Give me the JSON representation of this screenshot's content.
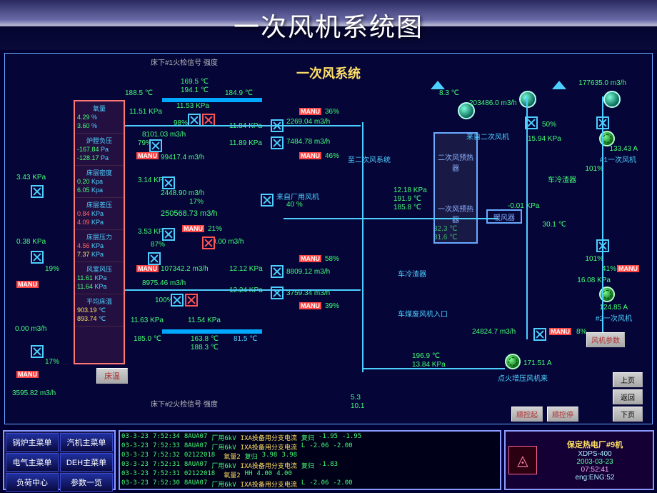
{
  "titlebar": {
    "title": "一次风机系统图"
  },
  "canvas": {
    "subtitle": "一次风系统",
    "top_text": "床下#1火检信号  强度",
    "bottom_text": "床下#2火检信号  强度",
    "bottom_values": {
      "a": "5.3",
      "b": "10.1"
    },
    "bed_temp_btn": "床温",
    "fan_param_btn": "风机参数",
    "ctrl": {
      "seqstart": "顺控起",
      "seqstop": "顺控停"
    },
    "nav": {
      "up": "上页",
      "back": "返回",
      "down": "下页"
    },
    "boiler": {
      "sections": [
        {
          "title": "氧量",
          "v1": "4.29",
          "u1": "%",
          "v2": "3.60",
          "u2": "%"
        },
        {
          "title": "炉膛负压",
          "v1": "-167.84",
          "u1": "Pa",
          "v2": "-128.17",
          "u2": "Pa"
        },
        {
          "title": "床层密度",
          "v1": "0.20",
          "u1": "Kpa",
          "v2": "6.05",
          "u2": "Kpa"
        },
        {
          "title": "床层差压",
          "v1": "0.84",
          "u1": "KPa",
          "v2": "4.09",
          "u2": "KPa"
        },
        {
          "title": "床层压力",
          "v1": "4.56",
          "u1": "KPa",
          "v2": "7.37",
          "u2": "KPa"
        },
        {
          "title": "风室风压",
          "v1": "11.61",
          "u1": "KPa",
          "v2": "11.64",
          "u2": "KPa"
        },
        {
          "title": "平均床温",
          "v1": "903.19",
          "u1": "℃",
          "v2": "893.74",
          "u2": "℃"
        }
      ]
    },
    "values": {
      "t1": "169.5",
      "t2": "194.1",
      "t_left": "188.5",
      "t_right_a": "184.9",
      "kpa_a": "11.51",
      "kpa_b": "11.53",
      "flow1": "8101.03",
      "flow1_pct": "79",
      "pct_98": "98",
      "kpa_c": "11.84",
      "flow_c": "2269.04",
      "pct_36": "36",
      "flow2": "99417.4",
      "kpa_d": "11.89",
      "flow_d": "7484.78",
      "pct_46": "46",
      "kpa_e": "3.14",
      "flow3": "2448.90",
      "pct_17": "17",
      "total_flow": "250568.73",
      "kpa_f": "3.53",
      "pct_87": "87",
      "pct_21": "21",
      "flow_f": "0.00",
      "flow4": "107342.2",
      "kpa_g": "12.12",
      "pct_58": "58",
      "flow_g": "8809.12",
      "flow5": "8975.46",
      "kpa_h": "12.24",
      "flow_h": "3759.34",
      "pct_100": "100",
      "kpa_i": "11.63",
      "kpa_j": "11.54",
      "pct_39": "39",
      "t_low_a": "185.0",
      "t_low_b": "163.8",
      "t_low_c": "188.3",
      "t_low_d": "81.5",
      "left1_kpa": "3.43",
      "left2_kpa": "0.38",
      "left_pct": "19",
      "left_flow": "0.00",
      "left_pct2": "17",
      "left_flow2": "3595.82",
      "preheater_top": "二次风预热器",
      "preheater_bot": "一次风预热器",
      "air_label": "暖风器",
      "source1": "来自二次风机",
      "dest1": "至二次风系统",
      "source2": "来自厂用风机",
      "dest2": "车冷渣器",
      "c2_kpa": "12.18",
      "c2_t1": "191.9",
      "c2_t2": "185.8",
      "c2_t3": "32.3",
      "c2_t4": "30.1",
      "c2_t5": "31.6",
      "c2_kpa2": "-0.01",
      "c2_t_in": "8.3",
      "r_flow1": "203486.0",
      "r_flow2": "177635.0",
      "r_pct50": "50",
      "r_kpa3": "15.94",
      "r_a1": "133.43",
      "r_lab1": "#1一次风机",
      "r_pct101a": "101",
      "r_pct101b": "101",
      "r_kpa4": "16.08",
      "r_a2": "124.85",
      "r_lab2": "#2一次风机",
      "r_pct41": "41",
      "r_flow3": "24824.7",
      "r_pct8": "8",
      "r_a3": "171.51",
      "r_lab3": "点火增压风机来",
      "r_dest3": "车煤废风机入口",
      "r_dest4": "车冷渣器",
      "r_t_low": "196.9",
      "r_kpa_low": "13.84"
    }
  },
  "menus": {
    "items": [
      "锅炉主菜单",
      "汽机主菜单",
      "电气主菜单",
      "DEH主菜单",
      "负荷中心",
      "参数一览"
    ]
  },
  "log": {
    "rows": [
      [
        "03-3-23",
        "7:52:34",
        "8AUA07",
        "厂用6kV",
        "IXA投备用分支电流",
        "复归",
        "-1.95",
        "-1.95"
      ],
      [
        "03-3-23",
        "7:52:33",
        "8AUA07",
        "厂用6kV",
        "IXA投备用分支电流",
        "L",
        "-2.06",
        "-2.00"
      ],
      [
        "03-3-23",
        "7:52:32",
        "02122018",
        "",
        "氧量2",
        "复归",
        "3.98",
        "3.98"
      ],
      [
        "03-3-23",
        "7:52:31",
        "8AUA07",
        "厂用6kV",
        "IXA投备用分支电流",
        "复归",
        "-1.83",
        ""
      ],
      [
        "03-3-23",
        "7:52:31",
        "02122018",
        "",
        "氧量2",
        "HH",
        "4.00",
        "4.00"
      ],
      [
        "03-3-23",
        "7:52:30",
        "8AUA07",
        "厂用6kV",
        "IXA投备用分支电流",
        "L",
        "-2.06",
        "-2.00"
      ]
    ]
  },
  "info": {
    "plant": "保定热电厂#9机",
    "model": "XDPS-400",
    "date": "2003-03-23",
    "time": "07:52:41",
    "eng": "eng:ENG:52"
  },
  "style": {
    "colors": {
      "bg": "#050538",
      "pipe": "#4dd0ff",
      "green": "#44ff77",
      "cyan": "#4dd0ff",
      "yellow": "#ffe066",
      "red": "#ff6666",
      "manu": "#ff4444"
    }
  }
}
